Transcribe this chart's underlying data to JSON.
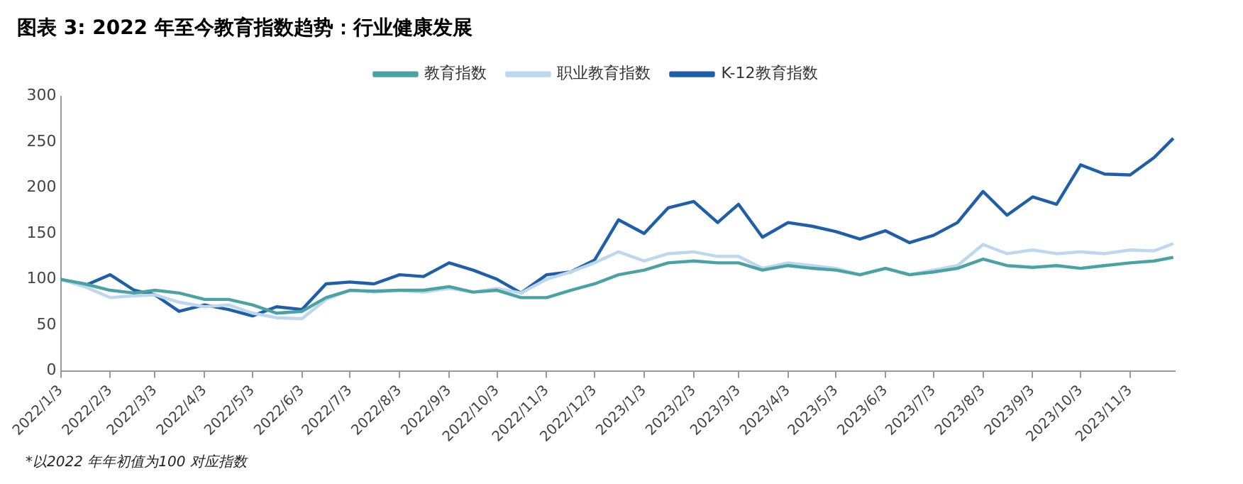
{
  "chart_data": {
    "type": "line",
    "title": "图表 3: 2022 年至今教育指数趋势：行业健康发展",
    "x": [
      "2022-01-03",
      "2022-01-18",
      "2022-02-03",
      "2022-02-18",
      "2022-03-03",
      "2022-03-18",
      "2022-04-03",
      "2022-04-18",
      "2022-05-03",
      "2022-05-18",
      "2022-06-03",
      "2022-06-18",
      "2022-07-03",
      "2022-07-18",
      "2022-08-03",
      "2022-08-18",
      "2022-09-03",
      "2022-09-18",
      "2022-10-03",
      "2022-10-18",
      "2022-11-03",
      "2022-11-18",
      "2022-12-03",
      "2022-12-18",
      "2023-01-03",
      "2023-01-18",
      "2023-02-03",
      "2023-02-18",
      "2023-03-03",
      "2023-03-18",
      "2023-04-03",
      "2023-04-18",
      "2023-05-03",
      "2023-05-18",
      "2023-06-03",
      "2023-06-18",
      "2023-07-03",
      "2023-07-18",
      "2023-08-03",
      "2023-08-18",
      "2023-09-03",
      "2023-09-18",
      "2023-10-03",
      "2023-10-18",
      "2023-11-03",
      "2023-11-18",
      "2023-11-30"
    ],
    "series": [
      {
        "name": "教育指数",
        "color": "#4aa3a2",
        "values": [
          100,
          95,
          88,
          85,
          88,
          85,
          78,
          78,
          72,
          63,
          65,
          80,
          88,
          87,
          88,
          88,
          92,
          86,
          88,
          80,
          80,
          88,
          95,
          105,
          110,
          118,
          120,
          118,
          118,
          110,
          115,
          112,
          110,
          105,
          112,
          105,
          108,
          112,
          122,
          115,
          113,
          115,
          112,
          115,
          118,
          120,
          124
        ]
      },
      {
        "name": "职业教育指数",
        "color": "#bdd7ee",
        "values": [
          100,
          92,
          80,
          82,
          83,
          75,
          70,
          72,
          63,
          58,
          57,
          78,
          88,
          86,
          88,
          86,
          90,
          86,
          90,
          85,
          100,
          108,
          118,
          130,
          120,
          128,
          130,
          125,
          125,
          112,
          118,
          115,
          112,
          105,
          112,
          105,
          110,
          115,
          138,
          128,
          132,
          128,
          130,
          128,
          132,
          131,
          139
        ]
      },
      {
        "name": "K-12教育指数",
        "color": "#1f5ea8",
        "values": [
          100,
          93,
          105,
          88,
          83,
          65,
          72,
          67,
          60,
          70,
          67,
          95,
          97,
          95,
          105,
          103,
          118,
          110,
          100,
          85,
          105,
          108,
          121,
          165,
          150,
          178,
          185,
          162,
          182,
          146,
          162,
          158,
          152,
          144,
          153,
          140,
          148,
          162,
          196,
          170,
          190,
          182,
          225,
          215,
          214,
          233,
          254
        ]
      }
    ],
    "xlim": [
      "2022-01-03",
      "2023-12-01"
    ],
    "xticks": [
      {
        "value": "2022-01-03",
        "label": "2022/1/3"
      },
      {
        "value": "2022-02-03",
        "label": "2022/2/3"
      },
      {
        "value": "2022-03-03",
        "label": "2022/3/3"
      },
      {
        "value": "2022-04-03",
        "label": "2022/4/3"
      },
      {
        "value": "2022-05-03",
        "label": "2022/5/3"
      },
      {
        "value": "2022-06-03",
        "label": "2022/6/3"
      },
      {
        "value": "2022-07-03",
        "label": "2022/7/3"
      },
      {
        "value": "2022-08-03",
        "label": "2022/8/3"
      },
      {
        "value": "2022-09-03",
        "label": "2022/9/3"
      },
      {
        "value": "2022-10-03",
        "label": "2022/10/3"
      },
      {
        "value": "2022-11-03",
        "label": "2022/11/3"
      },
      {
        "value": "2022-12-03",
        "label": "2022/12/3"
      },
      {
        "value": "2023-01-03",
        "label": "2023/1/3"
      },
      {
        "value": "2023-02-03",
        "label": "2023/2/3"
      },
      {
        "value": "2023-03-03",
        "label": "2023/3/3"
      },
      {
        "value": "2023-04-03",
        "label": "2023/4/3"
      },
      {
        "value": "2023-05-03",
        "label": "2023/5/3"
      },
      {
        "value": "2023-06-03",
        "label": "2023/6/3"
      },
      {
        "value": "2023-07-03",
        "label": "2023/7/3"
      },
      {
        "value": "2023-08-03",
        "label": "2023/8/3"
      },
      {
        "value": "2023-09-03",
        "label": "2023/9/3"
      },
      {
        "value": "2023-10-03",
        "label": "2023/10/3"
      },
      {
        "value": "2023-11-03",
        "label": "2023/11/3"
      }
    ],
    "ylim": [
      0,
      300
    ],
    "yticks": [
      0,
      50,
      100,
      150,
      200,
      250,
      300
    ],
    "grid": false,
    "legend": "top",
    "marker": "none",
    "line_style": "solid",
    "annotations": [
      "*以2022 年年初值为100 对应指数"
    ]
  }
}
